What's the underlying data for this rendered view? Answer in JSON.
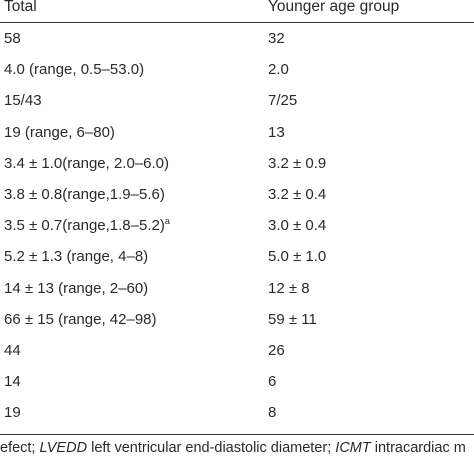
{
  "table": {
    "headers": {
      "total": "Total",
      "younger": "Younger age group"
    },
    "rows": [
      {
        "total": "58",
        "total_sup": "",
        "younger": "32"
      },
      {
        "total": "4.0 (range, 0.5–53.0)",
        "total_sup": "",
        "younger": "2.0"
      },
      {
        "total": "15/43",
        "total_sup": "",
        "younger": "7/25"
      },
      {
        "total": "19 (range, 6–80)",
        "total_sup": "",
        "younger": "13"
      },
      {
        "total": "3.4 ± 1.0(range, 2.0–6.0)",
        "total_sup": "",
        "younger": "3.2 ± 0.9"
      },
      {
        "total": "3.8 ± 0.8(range,1.9–5.6)",
        "total_sup": "",
        "younger": "3.2 ± 0.4"
      },
      {
        "total": "3.5 ± 0.7(range,1.8–5.2)",
        "total_sup": "a",
        "younger": "3.0 ± 0.4"
      },
      {
        "total": "5.2 ± 1.3 (range, 4–8)",
        "total_sup": "",
        "younger": "5.0 ± 1.0"
      },
      {
        "total": "14 ± 13 (range, 2–60)",
        "total_sup": "",
        "younger": "12 ± 8"
      },
      {
        "total": "66 ± 15 (range, 42–98)",
        "total_sup": "",
        "younger": "59 ± 11"
      },
      {
        "total": "44",
        "total_sup": "",
        "younger": "26"
      },
      {
        "total": "14",
        "total_sup": "",
        "younger": "6"
      },
      {
        "total": "19",
        "total_sup": "",
        "younger": "8"
      }
    ]
  },
  "footnote": {
    "part1": "efect; ",
    "abbr1": "LVEDD",
    "part2": " left ventricular end-diastolic diameter; ",
    "abbr2": "ICMT",
    "part3": " intracardiac m"
  }
}
